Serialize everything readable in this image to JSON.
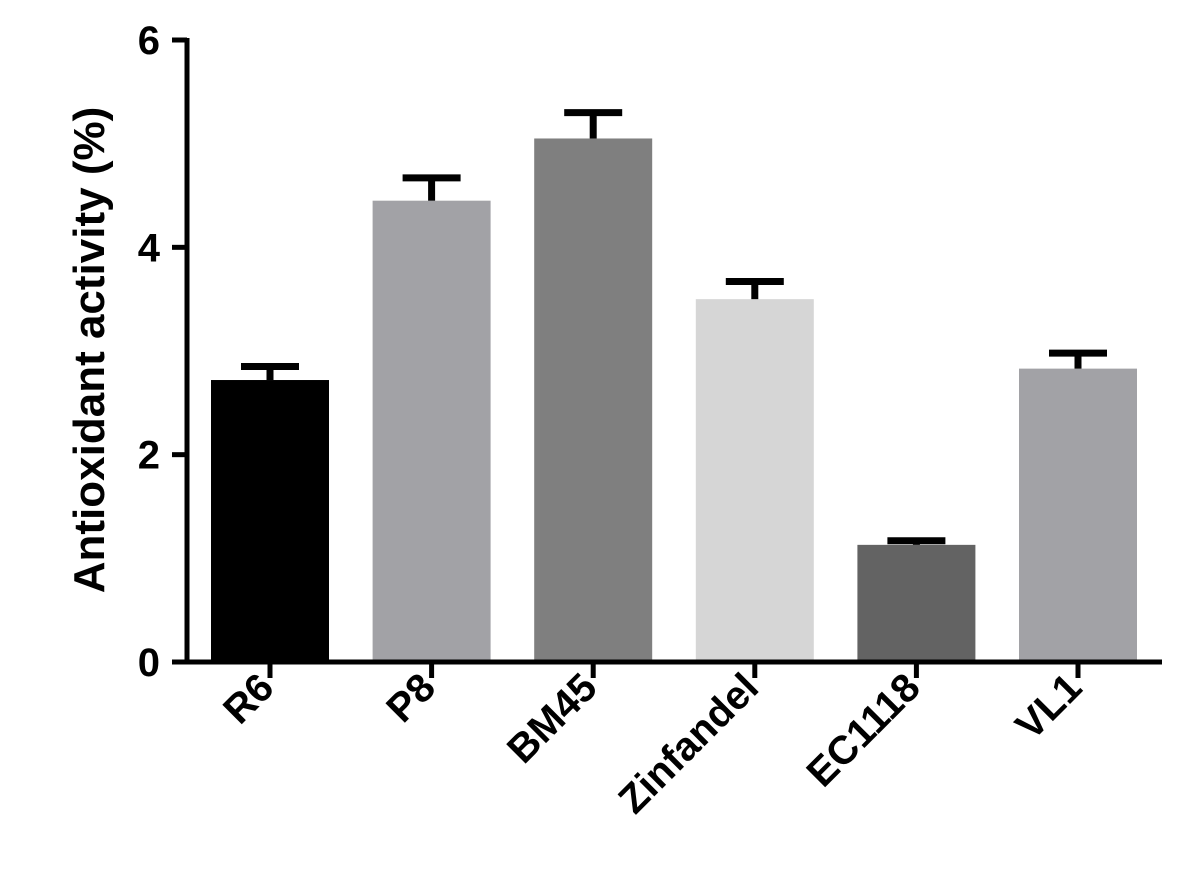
{
  "chart_data": {
    "type": "bar",
    "title": "",
    "xlabel": "",
    "ylabel": "Antioxidant activity (%)",
    "ylim": [
      0,
      6
    ],
    "yticks": [
      0,
      2,
      4,
      6
    ],
    "grid": false,
    "categories": [
      "R6",
      "P8",
      "BM45",
      "Zinfandel",
      "EC1118",
      "VL1"
    ],
    "values": [
      2.72,
      4.45,
      5.05,
      3.5,
      1.13,
      2.83
    ],
    "errors": [
      0.13,
      0.22,
      0.25,
      0.17,
      0.04,
      0.15
    ],
    "colors": [
      "#000000",
      "#a2a2a6",
      "#7f7f7f",
      "#d6d6d6",
      "#636363",
      "#a2a2a6"
    ]
  }
}
